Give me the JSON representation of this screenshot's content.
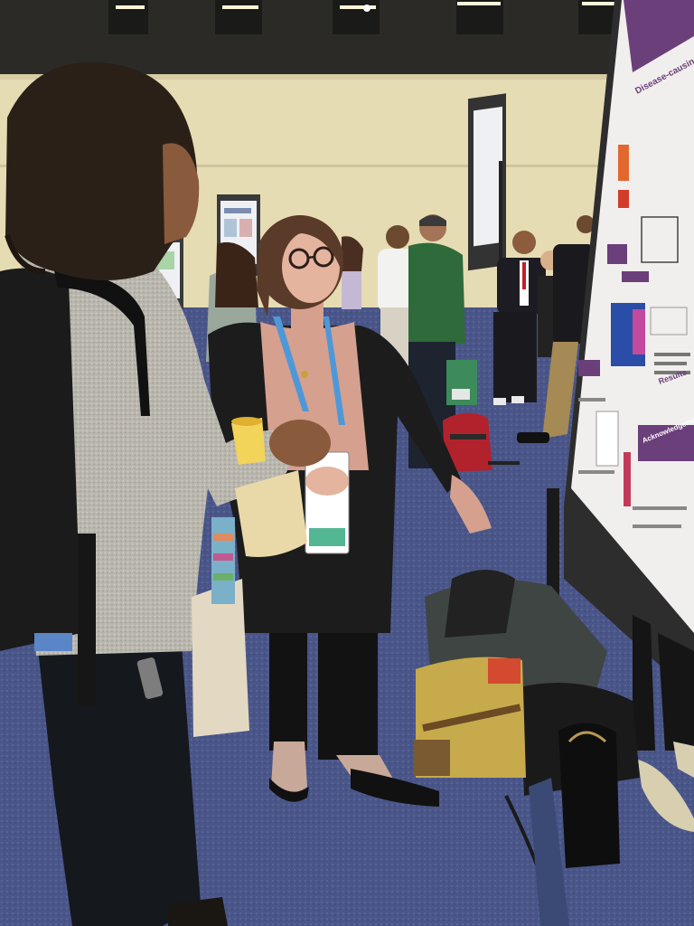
{
  "scene": {
    "description_tags": [
      "poster-session",
      "conference-hall"
    ],
    "colors": {
      "ceiling": "#2b2a27",
      "wall": "#e6dcb4",
      "carpet": "#4a5688",
      "poster_purple": "#6b3f7a",
      "green_jacket": "#2f6a3a"
    }
  },
  "poster": {
    "lines": [
      "Disease-causing mutations",
      "Results",
      "Acknowledgements and Refe"
    ]
  }
}
